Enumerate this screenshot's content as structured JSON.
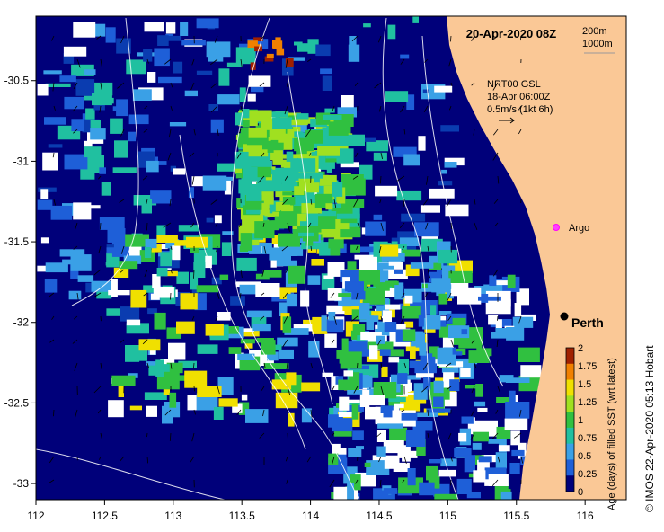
{
  "title": "20-Apr-2020 08Z",
  "depth_contours": [
    "200m",
    "1000m"
  ],
  "current_note": {
    "line1": "NRT00 GSL",
    "line2": "18-Apr 06:00Z",
    "line3": "0.5m/s (1kt 6h)"
  },
  "places": [
    {
      "name": "Argo",
      "lon": 115.75,
      "lat": -31.55,
      "marker": "magenta-circle"
    },
    {
      "name": "Perth",
      "lon": 115.85,
      "lat": -31.95,
      "marker": "black-dot"
    }
  ],
  "axes": {
    "x_ticks": [
      "112",
      "112.5",
      "113",
      "113.5",
      "114",
      "114.5",
      "115",
      "115.5",
      "116"
    ],
    "y_ticks": [
      "-30.5",
      "-31",
      "-31.5",
      "-32",
      "-32.5",
      "-33"
    ],
    "lon_range": [
      112,
      116.3
    ],
    "lat_range": [
      -33.1,
      -30.1
    ]
  },
  "colorbar": {
    "label": "Age (days) of filled SST (wrt latest)",
    "ticks": [
      "0",
      "0.25",
      "0.5",
      "0.75",
      "1",
      "1.25",
      "1.5",
      "1.75",
      "2"
    ],
    "colors": [
      "#00007a",
      "#1e5fd8",
      "#3aa0e6",
      "#20c0a0",
      "#30c040",
      "#a0e020",
      "#f0e000",
      "#f08000",
      "#a02000"
    ]
  },
  "credit": "© IMOS 22-Apr-2020 05:13 Hobart",
  "colors": {
    "land": "#fac896",
    "deep_blue": "#00007a"
  }
}
